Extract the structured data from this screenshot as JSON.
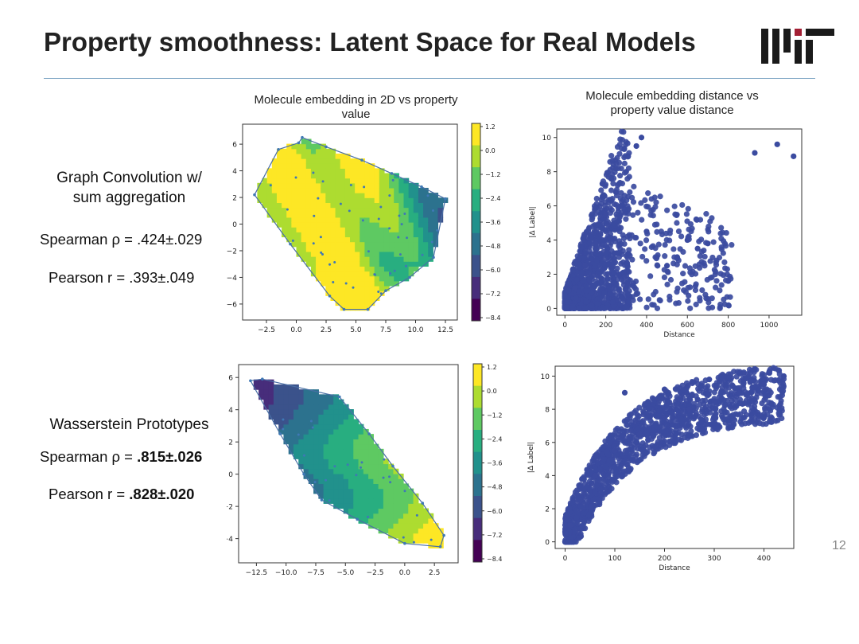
{
  "slide": {
    "title": "Property smoothness: Latent Space for Real Models",
    "page_number": "12",
    "logo_name": "mit-logo",
    "accent_color": "#a31f34",
    "rule_color": "#7fa6c4"
  },
  "rows": [
    {
      "method": "Graph Convolution w/ sum aggregation",
      "method_lines": [
        "Graph Convolution w/",
        "sum aggregation"
      ],
      "spearman_prefix": "Spearman ρ = ",
      "spearman_value": ".424±.029",
      "pearson_prefix": "Pearson r = ",
      "pearson_value": ".393±.049"
    },
    {
      "method": "Wasserstein Prototypes",
      "spearman_prefix": "Spearman ρ = ",
      "spearman_value": ".815±.026",
      "pearson_prefix": "Pearson r = ",
      "pearson_value": ".828±.020"
    }
  ],
  "plot_titles": {
    "embedding": "Molecule embedding in 2D vs property value",
    "embedding_lines": [
      "Molecule embedding in 2D vs property",
      "value"
    ],
    "distance": "Molecule embedding distance vs property value distance",
    "distance_lines": [
      "Molecule embedding distance vs",
      "property value distance"
    ]
  },
  "chart_data": [
    {
      "type": "heatmap",
      "title": "Molecule embedding in 2D vs property value",
      "xticks": [
        "−2.5",
        "0.0",
        "2.5",
        "5.0",
        "7.5",
        "10.0",
        "12.5"
      ],
      "yticks": [
        "6",
        "4",
        "2",
        "0",
        "−2",
        "−4",
        "−6"
      ],
      "xlim": [
        -4.5,
        13.5
      ],
      "ylim": [
        -7.2,
        7.5
      ],
      "colorbar_ticks": [
        "1.2",
        "0.0",
        "−1.2",
        "−2.4",
        "−3.6",
        "−4.8",
        "−6.0",
        "−7.2",
        "−8.4"
      ],
      "colormap": "viridis",
      "hull": [
        [
          -3.5,
          2.2
        ],
        [
          -1.5,
          5.6
        ],
        [
          0.2,
          6.1
        ],
        [
          0.5,
          6.5
        ],
        [
          2.5,
          5.8
        ],
        [
          5.5,
          4.8
        ],
        [
          8.0,
          3.8
        ],
        [
          10.5,
          2.8
        ],
        [
          12.5,
          1.9
        ],
        [
          11.5,
          -2.5
        ],
        [
          9.5,
          -4.0
        ],
        [
          7.5,
          -5.0
        ],
        [
          6.0,
          -6.4
        ],
        [
          4.0,
          -6.4
        ],
        [
          2.8,
          -5.4
        ],
        [
          -0.5,
          -1.5
        ]
      ]
    },
    {
      "type": "scatter",
      "title": "Molecule embedding distance vs property value distance",
      "xlabel": "Distance",
      "ylabel": "|Δ Label|",
      "xticks": [
        "0",
        "200",
        "400",
        "600",
        "800",
        "1000"
      ],
      "yticks": [
        "0",
        "2",
        "4",
        "6",
        "8",
        "10"
      ],
      "xlim": [
        -40,
        1160
      ],
      "ylim": [
        -0.4,
        10.5
      ],
      "color": "#3b4ba0",
      "sample_points": [
        [
          50,
          1.2
        ],
        [
          100,
          2.5
        ],
        [
          150,
          3.8
        ],
        [
          200,
          5.5
        ],
        [
          250,
          6.8
        ],
        [
          300,
          8.0
        ],
        [
          350,
          9.5
        ],
        [
          375,
          10.0
        ],
        [
          400,
          4.5
        ],
        [
          450,
          3.0
        ],
        [
          500,
          2.5
        ],
        [
          550,
          3.0
        ],
        [
          600,
          4.0
        ],
        [
          650,
          3.5
        ],
        [
          700,
          3.8
        ],
        [
          800,
          1.6
        ],
        [
          930,
          9.1
        ],
        [
          1040,
          9.6
        ],
        [
          1120,
          8.9
        ]
      ]
    },
    {
      "type": "heatmap",
      "title": "",
      "xticks": [
        "−12.5",
        "−10.0",
        "−7.5",
        "−5.0",
        "−2.5",
        "0.0",
        "2.5"
      ],
      "yticks": [
        "6",
        "4",
        "2",
        "0",
        "−2",
        "−4"
      ],
      "xlim": [
        -14,
        4.5
      ],
      "ylim": [
        -5.5,
        6.8
      ],
      "colorbar_ticks": [
        "1.2",
        "0.0",
        "−1.2",
        "−2.4",
        "−3.6",
        "−4.8",
        "−6.0",
        "−7.2",
        "−8.4"
      ],
      "colormap": "viridis",
      "hull": [
        [
          -13.0,
          5.8
        ],
        [
          -12.0,
          5.9
        ],
        [
          -5.5,
          4.8
        ],
        [
          -3.0,
          2.5
        ],
        [
          -1.0,
          0.5
        ],
        [
          1.5,
          -1.8
        ],
        [
          3.3,
          -3.8
        ],
        [
          3.0,
          -4.5
        ],
        [
          0.0,
          -4.3
        ],
        [
          -4.0,
          -2.8
        ],
        [
          -7.0,
          -1.6
        ],
        [
          -8.5,
          0.0
        ],
        [
          -10.5,
          2.5
        ]
      ]
    },
    {
      "type": "scatter",
      "title": "",
      "xlabel": "Distance",
      "ylabel": "|Δ Label|",
      "xticks": [
        "0",
        "100",
        "200",
        "300",
        "400"
      ],
      "yticks": [
        "0",
        "2",
        "4",
        "6",
        "8",
        "10"
      ],
      "xlim": [
        -20,
        460
      ],
      "ylim": [
        -0.4,
        10.6
      ],
      "color": "#3b4ba0",
      "sample_points": [
        [
          10,
          1.0
        ],
        [
          30,
          2.5
        ],
        [
          60,
          4.0
        ],
        [
          100,
          5.5
        ],
        [
          150,
          6.5
        ],
        [
          200,
          7.5
        ],
        [
          250,
          8.0
        ],
        [
          300,
          8.5
        ],
        [
          350,
          9.0
        ],
        [
          400,
          9.5
        ],
        [
          410,
          10.2
        ],
        [
          440,
          10.0
        ],
        [
          120,
          9.0
        ],
        [
          200,
          9.2
        ],
        [
          290,
          9.8
        ]
      ]
    }
  ]
}
